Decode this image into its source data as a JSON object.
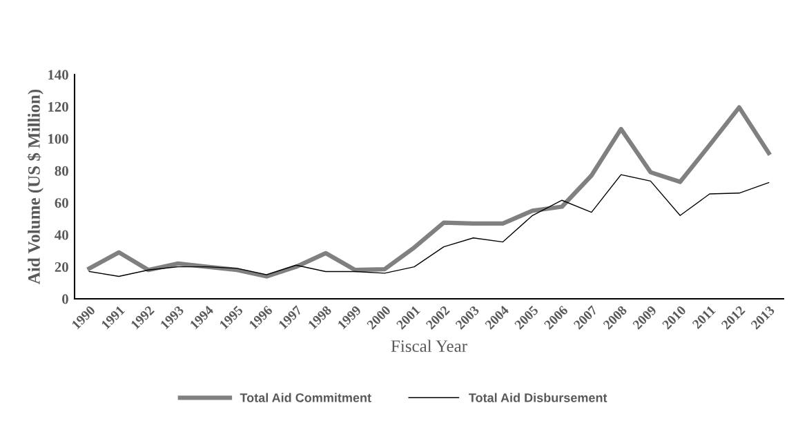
{
  "chart_data": {
    "type": "line",
    "xlabel": "Fiscal Year",
    "ylabel": "Aid Volume (US $ Million)",
    "categories": [
      "1990",
      "1991",
      "1992",
      "1993",
      "1994",
      "1995",
      "1996",
      "1997",
      "1998",
      "1999",
      "2000",
      "2001",
      "2002",
      "2003",
      "2004",
      "2005",
      "2006",
      "2007",
      "2008",
      "2009",
      "2010",
      "2011",
      "2012",
      "2013"
    ],
    "series": [
      {
        "name": "Total Aid Commitment",
        "color": "#808080",
        "values": [
          19,
          29,
          18,
          22,
          20,
          18,
          14,
          20,
          28.5,
          18,
          18.5,
          32,
          47.5,
          47,
          47,
          55,
          57.5,
          77,
          106,
          79,
          73,
          96,
          119.5,
          91
        ]
      },
      {
        "name": "Total Aid Disbursement",
        "color": "#000000",
        "values": [
          17,
          14,
          18,
          20,
          20,
          19,
          15,
          21,
          17,
          17,
          16,
          20,
          32.5,
          38,
          35.5,
          52,
          61.5,
          54,
          77.5,
          73.5,
          52,
          65.5,
          66,
          72.5
        ]
      }
    ],
    "ylim": [
      0,
      140
    ],
    "yticks": [
      0,
      20,
      40,
      60,
      80,
      100,
      120,
      140
    ],
    "grid": false,
    "legend": "bottom",
    "marker": "none",
    "line_style": "solid"
  }
}
